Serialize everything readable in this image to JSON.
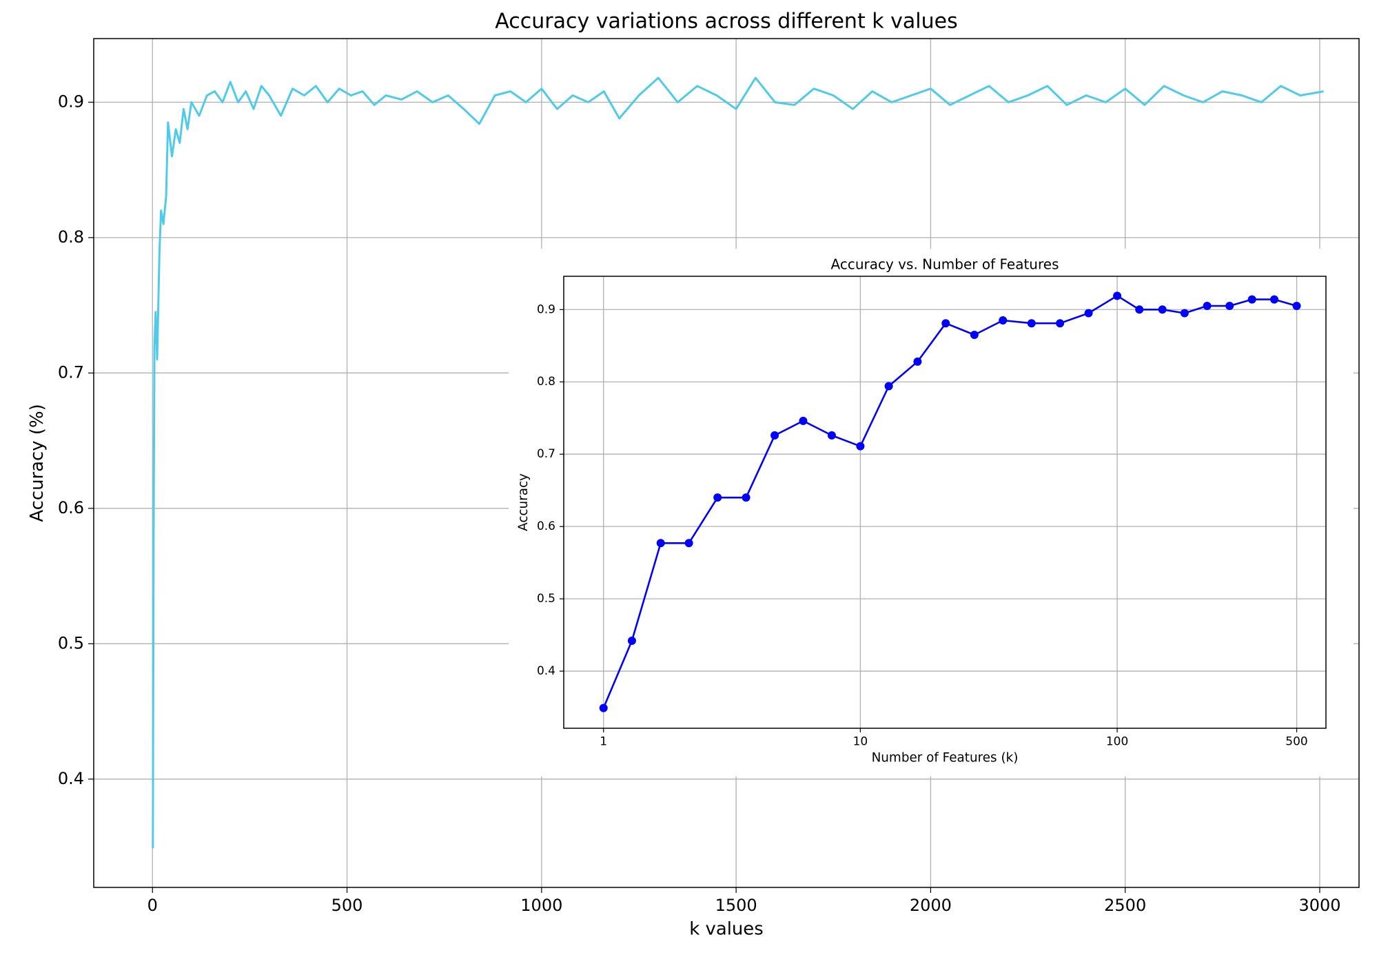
{
  "chart_data": [
    {
      "type": "line",
      "title": "Accuracy variations across different k values",
      "xlabel": "k values",
      "ylabel": "Accuracy (%)",
      "color": "#4fcbea",
      "markers": false,
      "grid": true,
      "xscale": "linear",
      "xlim": [
        -151,
        3101
      ],
      "ylim": [
        0.32,
        0.947
      ],
      "xticks": [
        0,
        500,
        1000,
        1500,
        2000,
        2500,
        3000
      ],
      "yticks": [
        0.4,
        0.5,
        0.6,
        0.7,
        0.8,
        0.9
      ],
      "x": [
        1,
        3,
        5,
        8,
        12,
        18,
        22,
        28,
        35,
        40,
        50,
        60,
        70,
        80,
        90,
        100,
        120,
        140,
        160,
        180,
        200,
        220,
        240,
        260,
        280,
        300,
        330,
        360,
        390,
        420,
        450,
        480,
        510,
        540,
        570,
        600,
        640,
        680,
        720,
        760,
        800,
        840,
        880,
        920,
        960,
        1000,
        1040,
        1080,
        1120,
        1160,
        1200,
        1250,
        1300,
        1350,
        1400,
        1450,
        1500,
        1550,
        1600,
        1650,
        1700,
        1750,
        1800,
        1850,
        1900,
        1950,
        2000,
        2050,
        2100,
        2150,
        2200,
        2250,
        2300,
        2350,
        2400,
        2450,
        2500,
        2550,
        2600,
        2650,
        2700,
        2750,
        2800,
        2850,
        2900,
        2950,
        3010
      ],
      "values": [
        0.349,
        0.58,
        0.72,
        0.745,
        0.71,
        0.79,
        0.82,
        0.81,
        0.83,
        0.885,
        0.86,
        0.88,
        0.87,
        0.895,
        0.88,
        0.9,
        0.89,
        0.905,
        0.908,
        0.9,
        0.915,
        0.9,
        0.908,
        0.895,
        0.912,
        0.905,
        0.89,
        0.91,
        0.905,
        0.912,
        0.9,
        0.91,
        0.905,
        0.908,
        0.898,
        0.905,
        0.902,
        0.908,
        0.9,
        0.905,
        0.895,
        0.884,
        0.905,
        0.908,
        0.9,
        0.91,
        0.895,
        0.905,
        0.9,
        0.908,
        0.888,
        0.905,
        0.918,
        0.9,
        0.912,
        0.905,
        0.895,
        0.918,
        0.9,
        0.898,
        0.91,
        0.905,
        0.895,
        0.908,
        0.9,
        0.905,
        0.91,
        0.898,
        0.905,
        0.912,
        0.9,
        0.905,
        0.912,
        0.898,
        0.905,
        0.9,
        0.91,
        0.898,
        0.912,
        0.905,
        0.9,
        0.908,
        0.905,
        0.9,
        0.912,
        0.905,
        0.908
      ]
    },
    {
      "type": "line",
      "title": "Accuracy vs. Number of Features",
      "xlabel": "Number of Features (k)",
      "ylabel": "Accuracy",
      "color": "#0000ff",
      "markers": true,
      "grid": true,
      "xscale": "log",
      "xlim": [
        0.7,
        650
      ],
      "ylim": [
        0.321,
        0.946
      ],
      "xticks": [
        1,
        10,
        100,
        500
      ],
      "yticks": [
        0.4,
        0.5,
        0.6,
        0.7,
        0.8,
        0.9
      ],
      "x": [
        1,
        1.29,
        1.67,
        2.15,
        2.78,
        3.59,
        4.64,
        5.99,
        7.74,
        10,
        12.9,
        16.7,
        21.5,
        27.8,
        35.9,
        46.4,
        59.9,
        77.4,
        100,
        122,
        150,
        183,
        224,
        274,
        335,
        409,
        500
      ],
      "values": [
        0.349,
        0.442,
        0.577,
        0.577,
        0.64,
        0.64,
        0.726,
        0.746,
        0.726,
        0.711,
        0.794,
        0.828,
        0.881,
        0.865,
        0.885,
        0.881,
        0.881,
        0.895,
        0.919,
        0.9,
        0.9,
        0.895,
        0.905,
        0.905,
        0.914,
        0.914,
        0.905
      ]
    }
  ]
}
